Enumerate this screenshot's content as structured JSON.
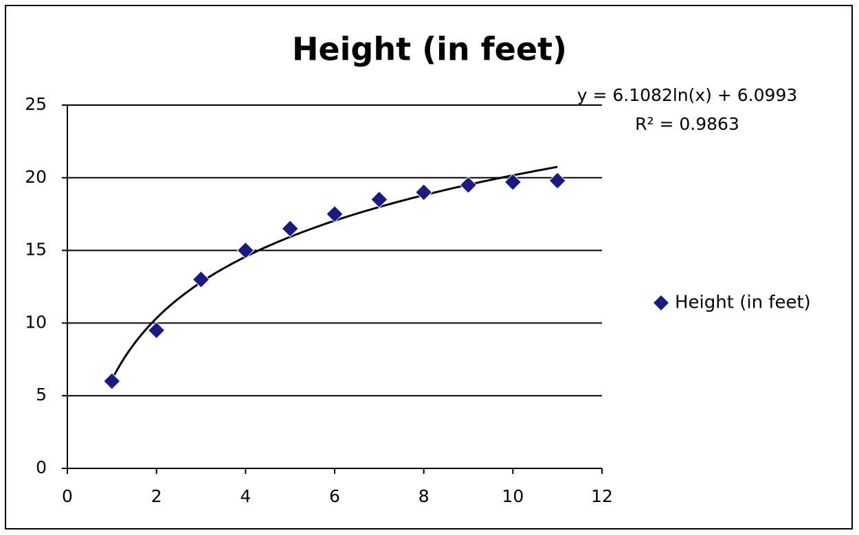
{
  "chart_data": {
    "type": "scatter",
    "title": "Height (in feet)",
    "x": [
      1,
      2,
      3,
      4,
      5,
      6,
      7,
      8,
      9,
      10,
      11
    ],
    "series": [
      {
        "name": "Height (in feet)",
        "color": "#1a1a80",
        "values": [
          6,
          9.5,
          13,
          15,
          16.5,
          17.5,
          18.5,
          19,
          19.5,
          19.7,
          19.8
        ]
      }
    ],
    "xlim": [
      0,
      12
    ],
    "xticks": [
      0,
      2,
      4,
      6,
      8,
      10,
      12
    ],
    "ylim": [
      0,
      25
    ],
    "yticks": [
      0,
      5,
      10,
      15,
      20,
      25
    ],
    "grid": true,
    "legend": "right",
    "trendline": {
      "type": "log",
      "slope": 6.1082,
      "intercept": 6.0993,
      "r_squared": 0.9863,
      "equation": "y = 6.1082ln(x) + 6.0993",
      "r_squared_label": "R² = 0.9863",
      "color": "#000000"
    }
  }
}
